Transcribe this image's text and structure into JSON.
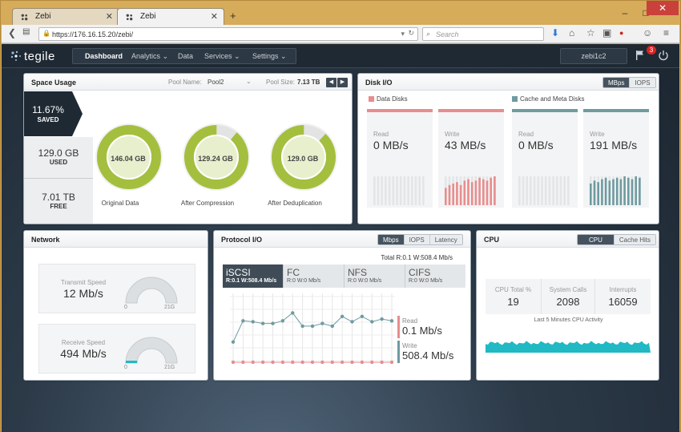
{
  "browser": {
    "tabs": [
      {
        "title": "Zebi"
      },
      {
        "title": "Zebi"
      }
    ],
    "url": "https://176.16.15.20/zebi/",
    "search_placeholder": "Search",
    "window_controls": {
      "minimize": "–",
      "maximize": "□",
      "close": "✕"
    }
  },
  "app": {
    "brand": "tegile",
    "nav": [
      {
        "label": "Dashboard",
        "active": true
      },
      {
        "label": "Analytics ⌄"
      },
      {
        "label": "Data"
      },
      {
        "label": "Services ⌄"
      },
      {
        "label": "Settings ⌄"
      }
    ],
    "user": "zebi1c2",
    "alert_count": "3"
  },
  "space_usage": {
    "title": "Space Usage",
    "pool_name_label": "Pool Name:",
    "pool_name": "Pool2",
    "pool_size_label": "Pool Size:",
    "pool_size": "7.13 TB",
    "stats": [
      {
        "value": "11.67%",
        "label": "SAVED"
      },
      {
        "value": "129.0 GB",
        "label": "USED"
      },
      {
        "value": "7.01 TB",
        "label": "FREE"
      }
    ],
    "donuts": [
      {
        "value": "146.04 GB",
        "label": "Original Data",
        "fill": 1.0
      },
      {
        "value": "129.24 GB",
        "label": "After Compression",
        "fill": 0.89
      },
      {
        "value": "129.0 GB",
        "label": "After Deduplication",
        "fill": 0.88
      }
    ],
    "colors": {
      "donut": "#a4bf3e",
      "donut_bg": "#e3e3e3"
    }
  },
  "disk_io": {
    "title": "Disk I/O",
    "toggles": [
      "MBps",
      "IOPS"
    ],
    "groups": [
      {
        "label": "Data Disks",
        "color": "#e88d8d"
      },
      {
        "label": "Cache and Meta Disks",
        "color": "#6e9ba0"
      }
    ],
    "cards": [
      {
        "label": "Read",
        "value": "0 MB/s"
      },
      {
        "label": "Write",
        "value": "43 MB/s"
      },
      {
        "label": "Read",
        "value": "0 MB/s"
      },
      {
        "label": "Write",
        "value": "191 MB/s"
      }
    ]
  },
  "network": {
    "title": "Network",
    "gauges": [
      {
        "label": "Transmit Speed",
        "value": "12 Mb/s",
        "min": "0",
        "max": "21G"
      },
      {
        "label": "Receive Speed",
        "value": "494 Mb/s",
        "min": "0",
        "max": "21G"
      }
    ]
  },
  "protocol_io": {
    "title": "Protocol I/O",
    "toggles": [
      "Mbps",
      "IOPS",
      "Latency"
    ],
    "total": "Total R:0.1 W:508.4 Mb/s",
    "protocols": [
      {
        "name": "iSCSI",
        "stats": "R:0.1 W:508.4 Mb/s"
      },
      {
        "name": "FC",
        "stats": "R:0 W:0 Mb/s"
      },
      {
        "name": "NFS",
        "stats": "R:0 W:0 Mb/s"
      },
      {
        "name": "CIFS",
        "stats": "R:0 W:0 Mb/s"
      }
    ],
    "read_label": "Read",
    "read_value": "0.1 Mb/s",
    "write_label": "Write",
    "write_value": "508.4 Mb/s",
    "chart_data": {
      "type": "line",
      "series": [
        {
          "values": [
            488,
            512,
            511,
            509,
            509,
            512,
            521,
            506,
            506,
            509,
            506,
            517,
            511,
            517,
            511,
            514,
            512
          ]
        },
        {
          "values": [
            0.1,
            0.1,
            0.1,
            0.1,
            0.1,
            0.1,
            0.1,
            0.1,
            0.1,
            0.1,
            0.1,
            0.1,
            0.1,
            0.1,
            0.1,
            0.1,
            0.1
          ]
        }
      ],
      "colors": [
        "#6e9ba0",
        "#e88d8d"
      ]
    }
  },
  "cpu": {
    "title": "CPU",
    "toggles": [
      "CPU",
      "Cache Hits"
    ],
    "stats": [
      {
        "label": "CPU Total %",
        "value": "19"
      },
      {
        "label": "System Calls",
        "value": "2098"
      },
      {
        "label": "Interrupts",
        "value": "16059"
      }
    ],
    "activity_label": "Last 5 Minutes CPU Activity",
    "activity_color": "#20b9c4"
  }
}
